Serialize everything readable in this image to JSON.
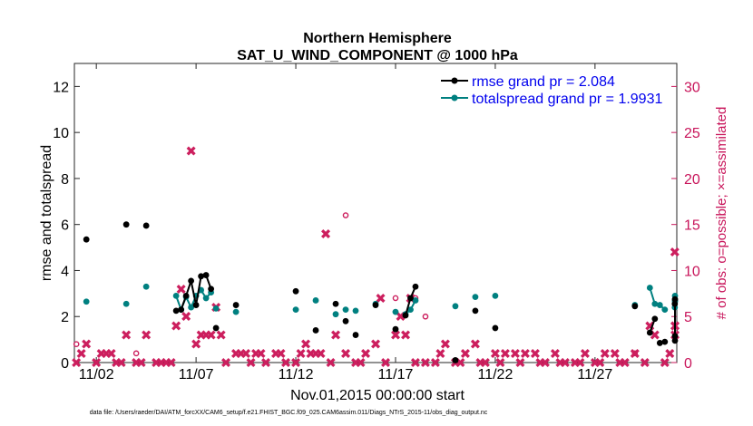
{
  "chart_data": {
    "type": "scatter",
    "title": "Northern Hemisphere",
    "subtitle": "SAT_U_WIND_COMPONENT @ 1000 hPa",
    "xlabel": "Nov.01,2015 00:00:00 start",
    "ylabel": "rmse and totalspread",
    "y2label": "# of obs: o=possible; ×=assimilated",
    "xlim": [
      0.9,
      31.1
    ],
    "ylim": [
      0,
      13
    ],
    "y2lim": [
      0,
      32.5
    ],
    "x_ticks": [
      2,
      7,
      12,
      17,
      22,
      27
    ],
    "x_tick_labels": [
      "11/02",
      "11/07",
      "11/12",
      "11/17",
      "11/22",
      "11/27"
    ],
    "y_ticks": [
      0,
      2,
      4,
      6,
      8,
      10,
      12
    ],
    "y_tick_labels": [
      "0",
      "2",
      "4",
      "6",
      "8",
      "10",
      "12"
    ],
    "y2_ticks": [
      0,
      5,
      10,
      15,
      20,
      25,
      30
    ],
    "y2_tick_labels": [
      "0",
      "5",
      "10",
      "15",
      "20",
      "25",
      "30"
    ],
    "legend": [
      {
        "label": "rmse grand pr = 2.084",
        "color": "#000000"
      },
      {
        "label": "totalspread grand pr = 1.9931",
        "color": "#008080"
      }
    ],
    "series": [
      {
        "name": "rmse",
        "axis": "left",
        "color": "#000000",
        "x": [
          1.5,
          3.5,
          4.5,
          6.0,
          6.25,
          6.5,
          6.75,
          7.0,
          7.25,
          7.5,
          7.75,
          8.0,
          9.0,
          12.0,
          13.0,
          14.0,
          14.5,
          15.0,
          16.0,
          17.0,
          17.5,
          17.75,
          18.0,
          20.0,
          21.0,
          22.0,
          29.0,
          29.75,
          30.0,
          30.25,
          30.5,
          31.0,
          31.25,
          31.5,
          31.75
        ],
        "y": [
          5.35,
          6.0,
          5.95,
          2.25,
          2.3,
          2.9,
          3.55,
          2.5,
          3.75,
          3.8,
          3.2,
          1.5,
          2.5,
          3.1,
          1.4,
          2.55,
          1.8,
          1.2,
          2.5,
          1.45,
          2.05,
          2.8,
          3.3,
          0.1,
          2.25,
          1.5,
          2.45,
          1.3,
          1.9,
          0.85,
          0.9,
          2.55,
          2.75,
          1.15,
          0.95
        ],
        "segments": [
          [
            3,
            4,
            5,
            6,
            7,
            8,
            9,
            10
          ],
          [
            20,
            21,
            22
          ],
          [
            27,
            28
          ],
          [
            32,
            33,
            34
          ]
        ]
      },
      {
        "name": "totalspread",
        "axis": "left",
        "color": "#008080",
        "x": [
          1.5,
          3.5,
          4.5,
          6.0,
          6.25,
          6.5,
          6.75,
          7.0,
          7.25,
          7.5,
          7.75,
          8.0,
          9.0,
          12.0,
          13.0,
          14.0,
          14.5,
          15.0,
          16.0,
          17.0,
          17.5,
          17.75,
          18.0,
          20.0,
          21.0,
          22.0,
          29.0,
          29.75,
          30.0,
          30.25,
          30.5,
          31.0,
          31.25,
          31.5,
          31.75
        ],
        "y": [
          2.65,
          2.55,
          3.3,
          2.9,
          2.3,
          2.85,
          2.4,
          2.9,
          3.15,
          2.8,
          3.05,
          2.35,
          2.2,
          2.3,
          2.7,
          2.1,
          2.3,
          2.25,
          2.55,
          2.2,
          2.1,
          2.3,
          2.7,
          2.45,
          2.85,
          2.9,
          2.5,
          3.25,
          2.55,
          2.5,
          2.3,
          2.4,
          2.65,
          2.9,
          2.7
        ],
        "segments": [
          [
            3,
            4,
            5,
            6,
            7,
            8,
            9,
            10
          ],
          [
            20,
            21,
            22
          ],
          [
            27,
            28,
            29,
            30
          ],
          [
            31,
            32,
            33,
            34
          ]
        ]
      },
      {
        "name": "obs assimilated",
        "axis": "right",
        "color": "#cc1f5e",
        "x": [
          1.0,
          1.25,
          1.5,
          2.0,
          2.25,
          2.5,
          2.75,
          3.0,
          3.25,
          3.5,
          4.0,
          4.25,
          4.5,
          5.0,
          5.25,
          5.5,
          5.75,
          6.0,
          6.25,
          6.5,
          6.75,
          7.0,
          7.25,
          7.5,
          7.75,
          8.0,
          8.25,
          8.5,
          9.0,
          9.25,
          9.5,
          9.75,
          10.0,
          10.25,
          10.5,
          11.0,
          11.25,
          11.5,
          12.0,
          12.25,
          12.5,
          12.75,
          13.0,
          13.25,
          13.5,
          13.75,
          14.0,
          14.5,
          15.0,
          15.25,
          15.5,
          16.0,
          16.25,
          16.5,
          17.0,
          17.25,
          17.5,
          17.75,
          18.0,
          18.5,
          19.0,
          19.25,
          19.5,
          20.0,
          20.25,
          20.5,
          21.0,
          21.25,
          21.5,
          22.0,
          22.25,
          22.5,
          23.0,
          23.25,
          23.5,
          24.0,
          24.25,
          24.5,
          25.0,
          25.25,
          25.5,
          26.0,
          26.25,
          26.5,
          27.0,
          27.25,
          27.5,
          28.0,
          28.25,
          28.5,
          29.0,
          29.5,
          29.75,
          30.0,
          30.5,
          30.75,
          31.0,
          31.25,
          31.5,
          31.75
        ],
        "y": [
          0,
          1,
          2,
          0,
          1,
          1,
          1,
          0,
          0,
          3,
          0,
          0,
          3,
          0,
          0,
          0,
          0,
          4,
          8,
          5,
          23,
          2,
          3,
          3,
          3,
          6,
          3,
          0,
          1,
          1,
          1,
          0,
          1,
          1,
          0,
          1,
          1,
          0,
          0,
          1,
          2,
          1,
          1,
          1,
          14,
          0,
          3,
          1,
          0,
          0,
          1,
          2,
          7,
          0,
          3,
          5,
          3,
          7,
          0,
          0,
          0,
          1,
          2,
          0,
          0,
          1,
          2,
          0,
          0,
          1,
          0,
          1,
          1,
          0,
          1,
          1,
          0,
          0,
          1,
          0,
          0,
          0,
          0,
          1,
          0,
          0,
          1,
          1,
          0,
          0,
          1,
          0,
          4,
          3,
          0,
          1,
          12,
          4,
          4,
          3
        ]
      },
      {
        "name": "obs possible",
        "axis": "right",
        "color": "#cc1f5e",
        "x": [
          1.0,
          4.0,
          14.5,
          17.0,
          18.0,
          18.5,
          29.0
        ],
        "y": [
          2,
          1,
          16,
          7,
          7,
          5,
          1
        ]
      }
    ],
    "footnote": "data file: /Users/raeder/DAI/ATM_forcXX/CAM6_setup/f.e21.FHIST_BGC.f09_025.CAM6assim.011/Diags_NTrS_2015-11/obs_diag_output.nc"
  }
}
